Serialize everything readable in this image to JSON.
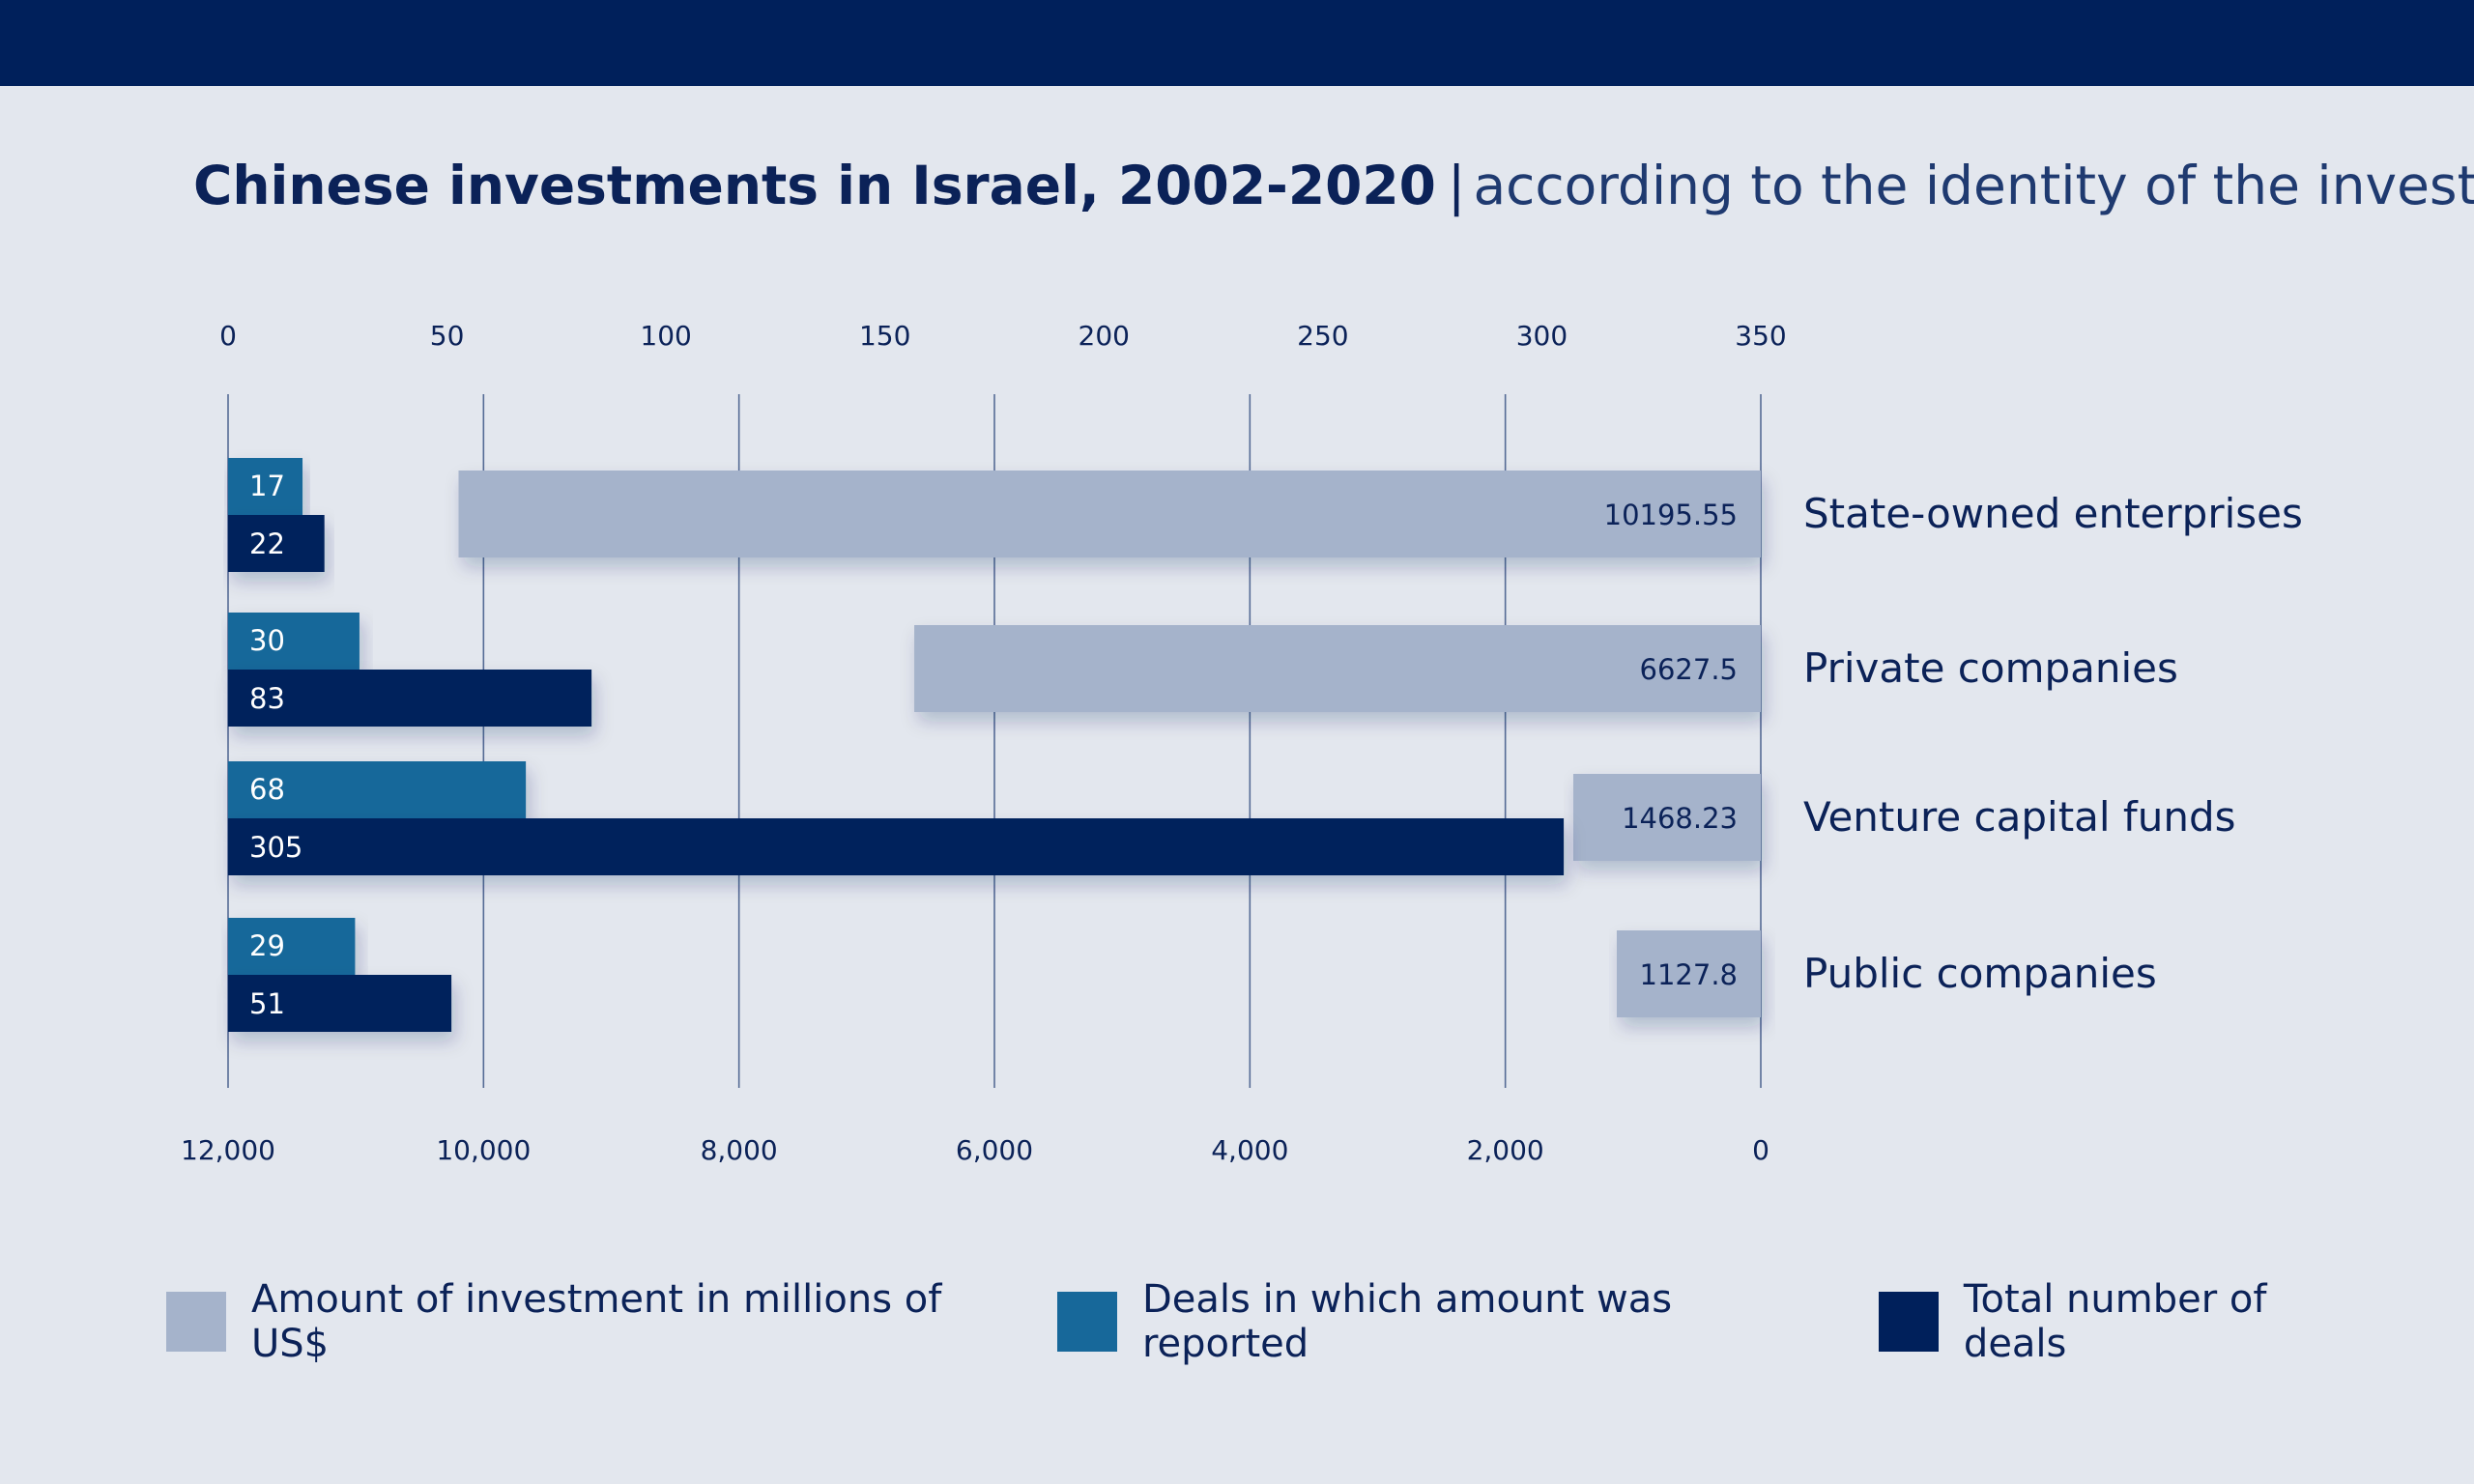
{
  "header": {
    "title": "Chinese investments in Israel, 2002-2020",
    "separator": "|",
    "subtitle": "according to the identity of the investor"
  },
  "colors": {
    "background": "#e3e7ee",
    "band": "#00205b",
    "amount": "#a5b3cb",
    "reported": "#17689a",
    "total": "#00205b",
    "text": "#0b2258",
    "grid": "#556b95"
  },
  "chart_data": {
    "type": "bar",
    "orientation": "horizontal-mirrored",
    "categories": [
      "State-owned enterprises",
      "Private companies",
      "Venture capital funds",
      "Public companies"
    ],
    "top_axis": {
      "ticks": [
        "0",
        "50",
        "100",
        "150",
        "200",
        "250",
        "300",
        "350"
      ],
      "range": [
        0,
        350
      ]
    },
    "bottom_axis": {
      "ticks": [
        "12,000",
        "10,000",
        "8,000",
        "6,000",
        "4,000",
        "2,000",
        "0"
      ],
      "range": [
        12000,
        0
      ]
    },
    "series": [
      {
        "name": "Amount of investment in millions of US$",
        "axis": "bottom",
        "values": [
          10195.55,
          6627.5,
          1468.23,
          1127.8
        ],
        "labels": [
          "10195.55",
          "6627.5",
          "1468.23",
          "1127.8"
        ]
      },
      {
        "name": "Deals in which amount was reported",
        "axis": "top",
        "values": [
          17,
          30,
          68,
          29
        ],
        "labels": [
          "17",
          "30",
          "68",
          "29"
        ]
      },
      {
        "name": "Total number of deals",
        "axis": "top",
        "values": [
          22,
          83,
          305,
          51
        ],
        "labels": [
          "22",
          "83",
          "305",
          "51"
        ]
      }
    ],
    "legend": "bottom",
    "grid": true
  }
}
